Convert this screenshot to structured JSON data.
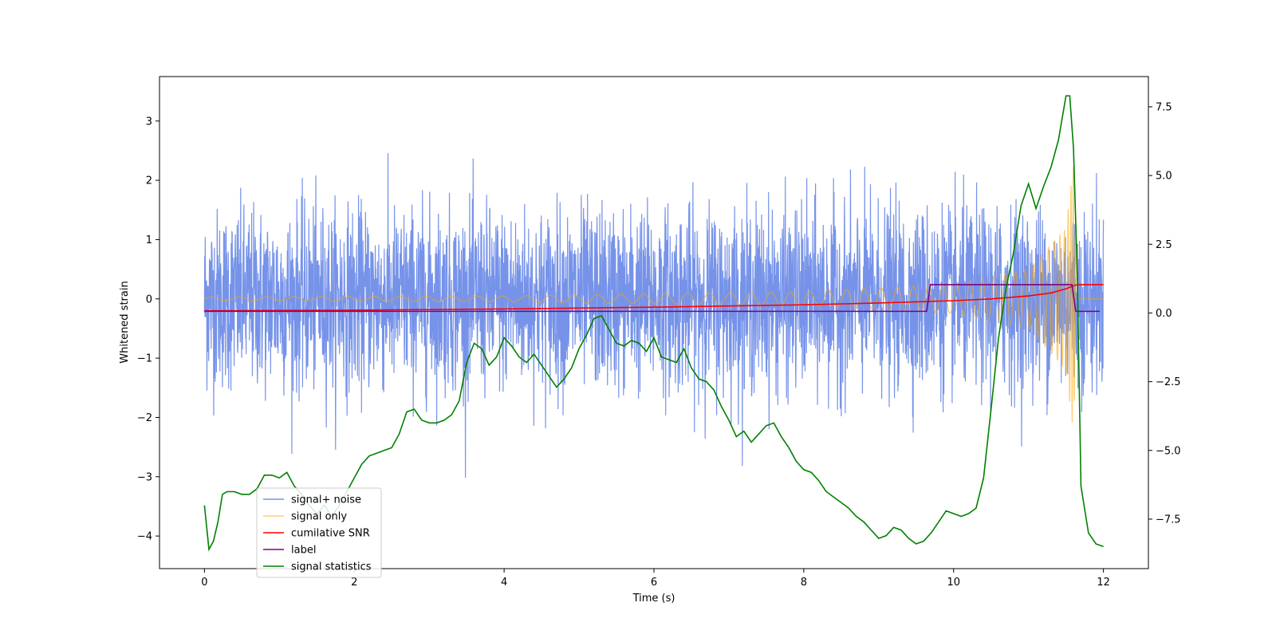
{
  "chart_data": {
    "type": "line",
    "title": "",
    "xlabel": "Time (s)",
    "ylabel": "Whitened strain",
    "ylabel_right": "",
    "xlim": [
      -0.6,
      12.6
    ],
    "ylim_left": [
      -4.55,
      3.75
    ],
    "ylim_right": [
      -9.3,
      8.6
    ],
    "xticks": [
      0,
      2,
      4,
      6,
      8,
      10,
      12
    ],
    "yticks_left": [
      -4,
      -3,
      -2,
      -1,
      0,
      1,
      2,
      3
    ],
    "yticks_right": [
      -7.5,
      -5.0,
      -2.5,
      0.0,
      2.5,
      5.0,
      7.5
    ],
    "grid": false,
    "legend_placement": "lower left",
    "series": [
      {
        "name": "signal+ noise",
        "axis": "left",
        "color": "#4169e1",
        "style": "noise band",
        "t_range": [
          0,
          12
        ],
        "approx_range": [
          -4.2,
          3.4
        ],
        "note_values": {
          "band_min_typical": -1.9,
          "band_max_typical": 2.0
        }
      },
      {
        "name": "signal only",
        "axis": "left",
        "color": "#ffa500",
        "style": "chirp",
        "t_range": [
          0,
          12
        ],
        "amplitude_points": [
          [
            0,
            0.03
          ],
          [
            4,
            0.05
          ],
          [
            8,
            0.12
          ],
          [
            10,
            0.25
          ],
          [
            11,
            0.5
          ],
          [
            11.5,
            1.2
          ],
          [
            11.6,
            2.3
          ],
          [
            11.65,
            0.0
          ],
          [
            12,
            0.0
          ]
        ]
      },
      {
        "name": "cumilative SNR",
        "axis": "left",
        "color": "#ff0000",
        "x": [
          0,
          2,
          4,
          6,
          8,
          9,
          10,
          10.5,
          11,
          11.3,
          11.5,
          11.6,
          11.65,
          12
        ],
        "values": [
          -0.2,
          -0.19,
          -0.17,
          -0.14,
          -0.1,
          -0.07,
          -0.03,
          0.0,
          0.05,
          0.1,
          0.17,
          0.22,
          0.24,
          0.24
        ]
      },
      {
        "name": "label",
        "axis": "left",
        "color": "#800080",
        "x": [
          0,
          9.64,
          9.69,
          11.58,
          11.63,
          11.95
        ],
        "values": [
          -0.21,
          -0.21,
          0.24,
          0.24,
          -0.21,
          -0.21
        ]
      },
      {
        "name": "signal statistics",
        "axis": "right",
        "color": "#008000",
        "x": [
          0.0,
          0.06,
          0.12,
          0.18,
          0.24,
          0.3,
          0.4,
          0.5,
          0.6,
          0.7,
          0.8,
          0.9,
          1.0,
          1.1,
          1.2,
          1.3,
          1.4,
          1.5,
          1.6,
          1.7,
          1.8,
          1.9,
          2.0,
          2.1,
          2.2,
          2.3,
          2.4,
          2.5,
          2.6,
          2.7,
          2.8,
          2.9,
          3.0,
          3.1,
          3.2,
          3.3,
          3.4,
          3.5,
          3.6,
          3.7,
          3.8,
          3.9,
          4.0,
          4.1,
          4.2,
          4.3,
          4.4,
          4.5,
          4.6,
          4.7,
          4.8,
          4.9,
          5.0,
          5.1,
          5.2,
          5.3,
          5.4,
          5.5,
          5.6,
          5.7,
          5.8,
          5.9,
          6.0,
          6.1,
          6.2,
          6.3,
          6.4,
          6.5,
          6.6,
          6.7,
          6.8,
          6.9,
          7.0,
          7.1,
          7.2,
          7.3,
          7.4,
          7.5,
          7.6,
          7.7,
          7.8,
          7.9,
          8.0,
          8.1,
          8.2,
          8.3,
          8.4,
          8.5,
          8.6,
          8.7,
          8.8,
          8.9,
          9.0,
          9.1,
          9.2,
          9.3,
          9.4,
          9.5,
          9.6,
          9.7,
          9.8,
          9.9,
          10.0,
          10.1,
          10.2,
          10.3,
          10.4,
          10.5,
          10.6,
          10.7,
          10.8,
          10.9,
          11.0,
          11.1,
          11.2,
          11.3,
          11.4,
          11.45,
          11.5,
          11.55,
          11.6,
          11.65,
          11.7,
          11.8,
          11.9,
          12.0
        ],
        "values": [
          -7.0,
          -8.6,
          -8.3,
          -7.6,
          -6.6,
          -6.5,
          -6.5,
          -6.6,
          -6.6,
          -6.4,
          -5.9,
          -5.9,
          -6.0,
          -5.8,
          -6.3,
          -6.6,
          -7.0,
          -7.3,
          -7.0,
          -7.4,
          -7.0,
          -6.5,
          -6.0,
          -5.5,
          -5.2,
          -5.1,
          -5.0,
          -4.9,
          -4.4,
          -3.6,
          -3.5,
          -3.9,
          -4.0,
          -4.0,
          -3.9,
          -3.7,
          -3.2,
          -1.8,
          -1.1,
          -1.3,
          -1.9,
          -1.6,
          -0.9,
          -1.2,
          -1.6,
          -1.8,
          -1.5,
          -1.9,
          -2.3,
          -2.7,
          -2.4,
          -2.0,
          -1.3,
          -0.8,
          -0.2,
          -0.1,
          -0.6,
          -1.1,
          -1.2,
          -1.0,
          -1.1,
          -1.4,
          -0.9,
          -1.6,
          -1.7,
          -1.8,
          -1.3,
          -2.0,
          -2.4,
          -2.5,
          -2.8,
          -3.4,
          -3.9,
          -4.5,
          -4.3,
          -4.7,
          -4.4,
          -4.1,
          -4.0,
          -4.5,
          -4.9,
          -5.4,
          -5.7,
          -5.8,
          -6.1,
          -6.5,
          -6.7,
          -6.9,
          -7.1,
          -7.4,
          -7.6,
          -7.9,
          -8.2,
          -8.1,
          -7.8,
          -7.9,
          -8.2,
          -8.4,
          -8.3,
          -8.0,
          -7.6,
          -7.2,
          -7.3,
          -7.4,
          -7.3,
          -7.1,
          -6.0,
          -3.5,
          -0.9,
          0.9,
          2.2,
          3.9,
          4.7,
          3.8,
          4.6,
          5.3,
          6.3,
          7.1,
          7.9,
          7.9,
          6.0,
          1.5,
          -6.3,
          -8.0,
          -8.4,
          -8.5
        ]
      }
    ]
  }
}
